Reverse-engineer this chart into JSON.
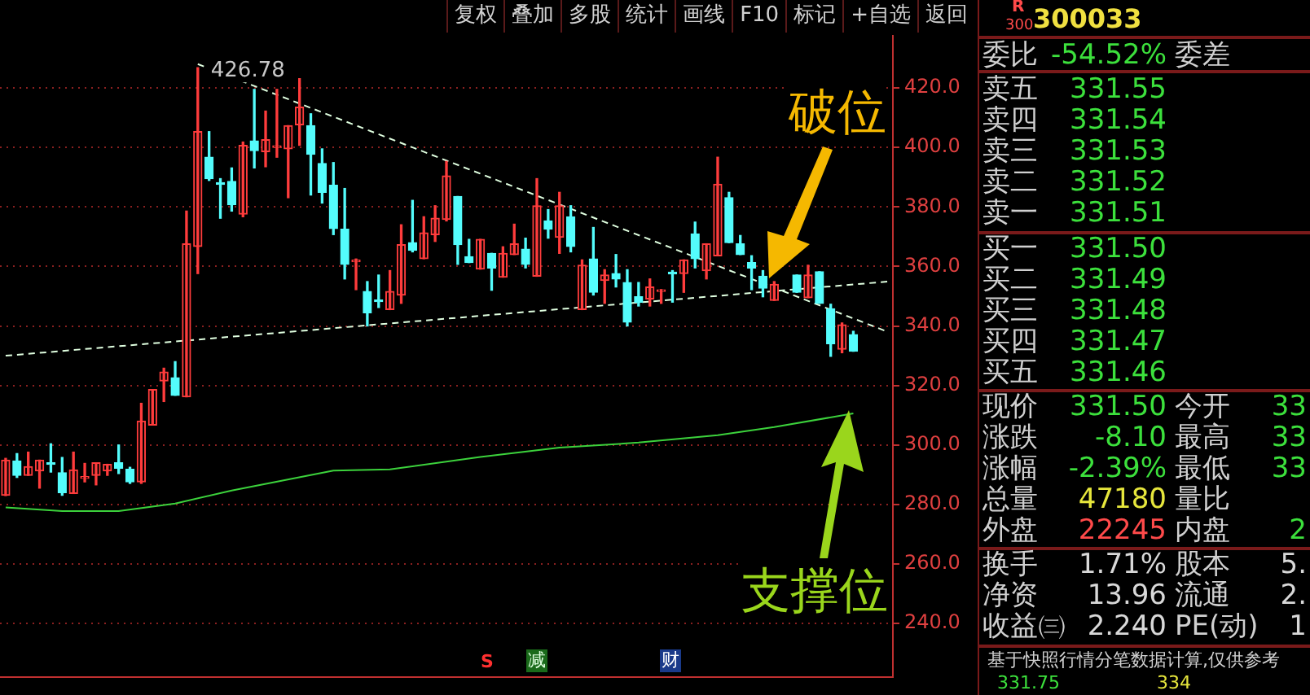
{
  "chart_data": {
    "type": "candlestick",
    "categories": [
      null,
      null,
      null,
      null,
      null,
      null,
      null,
      null,
      null,
      null,
      null,
      null,
      null,
      null,
      null,
      null,
      null,
      null,
      null,
      null,
      null,
      null,
      null,
      null,
      null,
      null,
      null,
      null,
      null,
      null,
      null,
      null,
      null,
      null,
      null,
      null,
      null,
      null,
      null,
      null,
      null,
      null,
      null,
      null,
      null,
      null,
      null,
      null,
      null,
      null,
      null,
      null,
      null,
      null,
      null,
      null,
      null,
      null,
      null,
      null,
      null,
      null,
      null,
      null,
      null,
      null,
      null,
      null,
      null,
      null,
      null,
      null,
      null,
      null,
      null,
      null,
      null,
      null,
      null
    ],
    "ohlc": [
      [
        283.1,
        295.5,
        283.0,
        294.9
      ],
      [
        294.6,
        297.1,
        289.1,
        289.8
      ],
      [
        289.8,
        297.6,
        289.8,
        292.7
      ],
      [
        291.3,
        294.9,
        285.5,
        294.9
      ],
      [
        294.0,
        300.4,
        290.9,
        293.5
      ],
      [
        290.7,
        295.8,
        283.1,
        284.0
      ],
      [
        283.7,
        297.6,
        283.7,
        291.6
      ],
      [
        288.8,
        293.8,
        287.6,
        289.0
      ],
      [
        289.8,
        294.0,
        286.6,
        294.0
      ],
      [
        291.3,
        293.5,
        289.8,
        293.5
      ],
      [
        294.0,
        300.0,
        290.4,
        292.2
      ],
      [
        291.8,
        292.5,
        287.1,
        287.6
      ],
      [
        287.6,
        314.0,
        287.1,
        308.0
      ],
      [
        306.7,
        318.6,
        306.7,
        318.6
      ],
      [
        321.5,
        325.8,
        314.6,
        324.5
      ],
      [
        322.6,
        328.0,
        316.7,
        316.7
      ],
      [
        316.2,
        378.6,
        316.2,
        367.6
      ],
      [
        366.7,
        426.78,
        357.6,
        405.3
      ],
      [
        396.7,
        405.3,
        388.9,
        389.5
      ],
      [
        388.0,
        389.5,
        376.2,
        387.6
      ],
      [
        388.6,
        393.1,
        378.6,
        380.7
      ],
      [
        377.6,
        401.8,
        376.7,
        400.7
      ],
      [
        402.2,
        419.5,
        393.1,
        398.9
      ],
      [
        398.6,
        412.2,
        393.5,
        402.6
      ],
      [
        400.0,
        419.5,
        396.7,
        400.2
      ],
      [
        399.5,
        407.3,
        383.1,
        407.3
      ],
      [
        407.6,
        423.1,
        400.7,
        413.5
      ],
      [
        407.3,
        411.3,
        384.0,
        397.7
      ],
      [
        394.6,
        399.5,
        381.3,
        384.9
      ],
      [
        387.3,
        394.9,
        370.7,
        372.7
      ],
      [
        372.5,
        386.2,
        355.8,
        360.7
      ],
      [
        361.6,
        362.5,
        352.2,
        361.8
      ],
      [
        351.6,
        354.9,
        340.0,
        344.4
      ],
      [
        348.4,
        357.1,
        346.2,
        348.2
      ],
      [
        345.5,
        358.6,
        345.5,
        351.6
      ],
      [
        350.4,
        374.0,
        347.6,
        367.3
      ],
      [
        368.0,
        382.2,
        364.9,
        365.4
      ],
      [
        362.6,
        376.7,
        362.6,
        371.3
      ],
      [
        370.7,
        380.4,
        368.4,
        376.2
      ],
      [
        375.8,
        395.3,
        375.3,
        390.4
      ],
      [
        383.5,
        383.5,
        360.7,
        367.3
      ],
      [
        363.3,
        369.1,
        361.3,
        361.3
      ],
      [
        359.1,
        369.1,
        359.1,
        369.1
      ],
      [
        364.4,
        364.4,
        352.0,
        359.5
      ],
      [
        356.4,
        366.6,
        356.4,
        364.4
      ],
      [
        364.0,
        374.2,
        364.0,
        367.6
      ],
      [
        365.8,
        369.5,
        359.5,
        360.7
      ],
      [
        356.7,
        389.5,
        356.7,
        380.4
      ],
      [
        375.3,
        379.1,
        369.5,
        372.5
      ],
      [
        369.8,
        384.9,
        364.4,
        380.4
      ],
      [
        376.7,
        380.4,
        364.9,
        366.7
      ],
      [
        345.5,
        362.2,
        345.5,
        360.4
      ],
      [
        362.5,
        373.1,
        350.4,
        351.3
      ],
      [
        355.3,
        358.9,
        347.6,
        357.1
      ],
      [
        357.6,
        364.0,
        353.1,
        355.8
      ],
      [
        354.6,
        358.9,
        340.0,
        341.3
      ],
      [
        349.8,
        354.6,
        346.7,
        348.0
      ],
      [
        349.1,
        355.8,
        346.7,
        353.1
      ],
      [
        351.6,
        352.2,
        347.6,
        351.7
      ],
      [
        357.7,
        358.6,
        348.0,
        357.5
      ],
      [
        357.6,
        362.2,
        351.3,
        362.2
      ],
      [
        370.9,
        374.9,
        359.5,
        362.6
      ],
      [
        358.6,
        367.6,
        355.8,
        367.6
      ],
      [
        363.6,
        396.7,
        363.6,
        387.6
      ],
      [
        383.1,
        384.9,
        368.0,
        368.0
      ],
      [
        367.6,
        370.4,
        364.0,
        364.0
      ],
      [
        361.3,
        363.6,
        352.2,
        359.5
      ],
      [
        356.7,
        358.6,
        349.8,
        352.7
      ],
      [
        348.6,
        354.9,
        348.6,
        354.0
      ],
      null,
      [
        357.1,
        357.1,
        351.3,
        351.3
      ],
      [
        349.5,
        360.4,
        349.5,
        357.1
      ],
      [
        358.2,
        358.2,
        347.6,
        347.6
      ],
      [
        345.8,
        347.3,
        329.8,
        334.0
      ],
      [
        332.2,
        341.0,
        331.0,
        340.4
      ],
      [
        337.1,
        338.2,
        331.5,
        331.5
      ],
      null,
      null,
      null
    ],
    "colors": [
      "#ff3c3c",
      "#54fcfc",
      "#ff3c3c",
      "#ff3c3c",
      "#54fcfc",
      "#54fcfc",
      "#ff3c3c",
      "#ff3c3c",
      "#ff3c3c",
      "#ff3c3c",
      "#54fcfc",
      "#54fcfc",
      "#ff3c3c",
      "#ff3c3c",
      "#ff3c3c",
      "#54fcfc",
      "#ff3c3c",
      "#ff3c3c",
      "#54fcfc",
      "#54fcfc",
      "#54fcfc",
      "#ff3c3c",
      "#54fcfc",
      "#ff3c3c",
      "#ff3c3c",
      "#ff3c3c",
      "#ff3c3c",
      "#54fcfc",
      "#54fcfc",
      "#54fcfc",
      "#54fcfc",
      "#ff3c3c",
      "#54fcfc",
      "#54fcfc",
      "#ff3c3c",
      "#ff3c3c",
      "#54fcfc",
      "#ff3c3c",
      "#ff3c3c",
      "#ff3c3c",
      "#54fcfc",
      "#54fcfc",
      "#ff3c3c",
      "#54fcfc",
      "#ff3c3c",
      "#ff3c3c",
      "#54fcfc",
      "#ff3c3c",
      "#54fcfc",
      "#ff3c3c",
      "#54fcfc",
      "#ff3c3c",
      "#54fcfc",
      "#ff3c3c",
      "#54fcfc",
      "#54fcfc",
      "#54fcfc",
      "#ff3c3c",
      "#ff3c3c",
      "#54fcfc",
      "#ff3c3c",
      "#54fcfc",
      "#ff3c3c",
      "#ff3c3c",
      "#54fcfc",
      "#54fcfc",
      "#54fcfc",
      "#54fcfc",
      "#ff3c3c",
      null,
      "#54fcfc",
      "#ff3c3c",
      "#54fcfc",
      "#54fcfc",
      "#ff3c3c",
      "#54fcfc",
      null,
      null,
      null
    ],
    "series": [
      {
        "type": "line",
        "color": "#3cd23c",
        "values": [
          279.0,
          null,
          null,
          null,
          null,
          277.8,
          null,
          null,
          null,
          null,
          277.8,
          null,
          null,
          null,
          null,
          280.3,
          null,
          null,
          null,
          null,
          284.7,
          null,
          null,
          null,
          null,
          null,
          null,
          null,
          null,
          291.4,
          null,
          null,
          null,
          null,
          291.8,
          null,
          null,
          null,
          null,
          null,
          null,
          null,
          296.0,
          null,
          null,
          null,
          null,
          null,
          null,
          299.1,
          null,
          null,
          null,
          null,
          null,
          null,
          300.8,
          null,
          null,
          null,
          null,
          null,
          null,
          303.3,
          null,
          null,
          null,
          null,
          306.0,
          null,
          null,
          null,
          null,
          null,
          null,
          310.6,
          null,
          null,
          null
        ]
      },
      {
        "type": "line",
        "color": "#e0ffe0",
        "line_style": "dashed",
        "values": [
          null,
          null,
          null,
          null,
          null,
          null,
          null,
          null,
          null,
          null,
          null,
          null,
          null,
          null,
          null,
          null,
          null,
          428,
          null,
          null,
          null,
          null,
          null,
          null,
          null,
          null,
          null,
          null,
          null,
          null,
          null,
          null,
          null,
          null,
          null,
          null,
          null,
          null,
          null,
          null,
          null,
          null,
          null,
          null,
          null,
          null,
          null,
          null,
          null,
          null,
          null,
          null,
          null,
          null,
          null,
          null,
          null,
          null,
          null,
          null,
          null,
          null,
          null,
          null,
          null,
          null,
          null,
          null,
          null,
          null,
          null,
          null,
          null,
          null,
          null,
          null,
          null,
          null,
          338.1
        ]
      },
      {
        "type": "line",
        "color": "#e0ffe0",
        "line_style": "dashed",
        "values": [
          330.0,
          null,
          null,
          null,
          null,
          null,
          null,
          null,
          null,
          null,
          null,
          null,
          null,
          null,
          null,
          null,
          null,
          null,
          null,
          null,
          null,
          null,
          null,
          null,
          null,
          null,
          null,
          null,
          null,
          null,
          null,
          null,
          null,
          null,
          null,
          null,
          null,
          null,
          null,
          null,
          null,
          null,
          null,
          null,
          null,
          null,
          null,
          null,
          null,
          null,
          null,
          null,
          null,
          null,
          null,
          null,
          null,
          null,
          null,
          null,
          null,
          null,
          null,
          null,
          null,
          null,
          null,
          null,
          null,
          null,
          null,
          null,
          null,
          null,
          null,
          null,
          null,
          null,
          354.9
        ]
      }
    ],
    "ylim": [
      222,
      437.5
    ],
    "yticks": [
      {
        "value": 240,
        "label": "240.0"
      },
      {
        "value": 260,
        "label": "260.0"
      },
      {
        "value": 280,
        "label": "280.0"
      },
      {
        "value": 300,
        "label": "300.0"
      },
      {
        "value": 320,
        "label": "320.0"
      },
      {
        "value": 340,
        "label": "340.0"
      },
      {
        "value": 360,
        "label": "360.0"
      },
      {
        "value": 380,
        "label": "380.0"
      },
      {
        "value": 400,
        "label": "400.0"
      },
      {
        "value": 420,
        "label": "420.0"
      }
    ],
    "grid": "y",
    "tick_labels": "y",
    "annotations": [
      "复权",
      "叠加",
      "多股",
      "统计",
      "画线",
      "F10",
      "标记",
      "+自选",
      "返回",
      "R",
      "300",
      "300033",
      "委比",
      "-54.52%",
      "委差",
      "卖五",
      "331.55",
      "卖四",
      "331.54",
      "卖三",
      "331.53",
      "卖二",
      "331.52",
      "卖一",
      "331.51",
      "买一",
      "331.50",
      "买二",
      "331.49",
      "买三",
      "331.48",
      "买四",
      "331.47",
      "买五",
      "331.46",
      "现价",
      "331.50",
      "今开",
      "33",
      "涨跌",
      "-8.10",
      "最高",
      "33",
      "涨幅",
      "-2.39%",
      "最低",
      "33",
      "总量",
      "47180",
      "量比",
      "外盘",
      "22245",
      "内盘",
      "2",
      "换手",
      "1.71%",
      "股本",
      "5.",
      "净资",
      "13.96",
      "流通",
      "2.",
      "收益㈢",
      "2.240",
      "PE(动)",
      "1",
      "基于快照行情分笔数据计算,仅供参考",
      "331.75",
      "334",
      "破位",
      "支撑位",
      "S",
      "减",
      "财",
      "426.78"
    ]
  }
}
